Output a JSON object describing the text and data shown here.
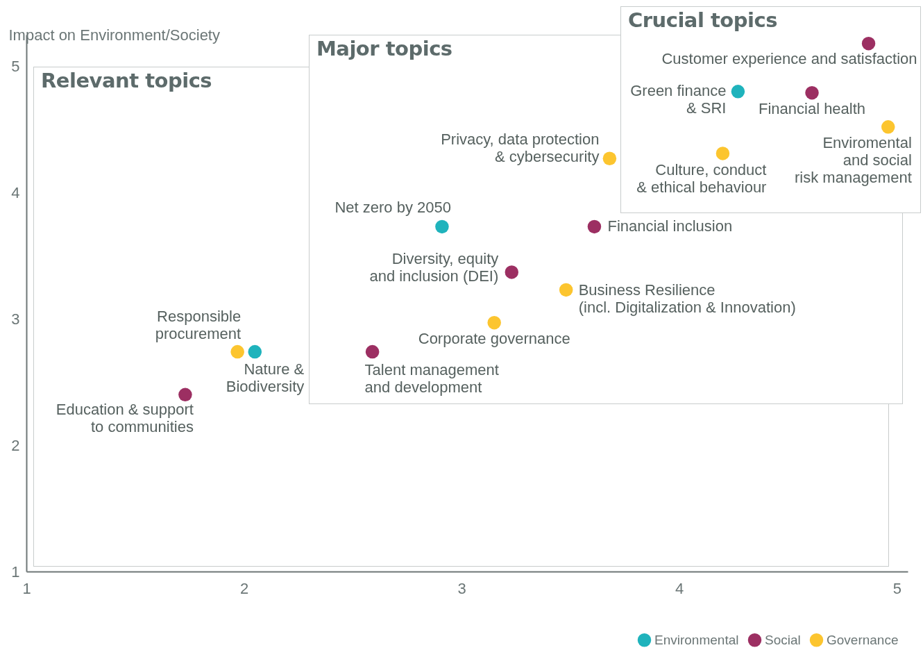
{
  "chart_data": {
    "type": "scatter",
    "ylabel": "Impact on Environment/Society",
    "xlim": [
      1,
      5.05
    ],
    "ylim": [
      1,
      5.25
    ],
    "xticks": [
      1,
      2,
      3,
      4,
      5
    ],
    "yticks": [
      1,
      2,
      3,
      4,
      5
    ],
    "grid": false,
    "legend": "bottom right",
    "marker": "circle",
    "series": [
      {
        "name": "Environmental",
        "color": "#1fb3bc",
        "x": [
          4.27,
          2.91,
          2.05
        ],
        "values": [
          4.8,
          3.73,
          2.74
        ]
      },
      {
        "name": "Social",
        "color": "#9c2f62",
        "x": [
          4.87,
          4.61,
          3.61,
          3.23,
          2.59,
          1.73
        ],
        "values": [
          5.18,
          4.79,
          3.73,
          3.37,
          2.74,
          2.4
        ]
      },
      {
        "name": "Governance",
        "color": "#fcc52f",
        "x": [
          4.96,
          4.2,
          3.68,
          3.48,
          3.15,
          1.97
        ],
        "values": [
          4.52,
          4.31,
          4.27,
          3.23,
          2.97,
          2.74
        ]
      }
    ],
    "annotations": [
      "Relevant topics",
      "Major topics",
      "Crucial topics",
      {
        "text": "Customer experience and satisfaction",
        "x": 4.87,
        "y": 5.18
      },
      {
        "text": "Green finance\n& SRI",
        "x": 4.27,
        "y": 4.8
      },
      {
        "text": "Financial health",
        "x": 4.61,
        "y": 4.79
      },
      {
        "text": "Enviromental\nand social\nrisk management",
        "x": 4.96,
        "y": 4.52
      },
      {
        "text": "Culture, conduct\n& ethical behaviour",
        "x": 4.2,
        "y": 4.31
      },
      {
        "text": "Privacy, data protection\n& cybersecurity",
        "x": 3.68,
        "y": 4.27
      },
      {
        "text": "Net zero by 2050",
        "x": 2.91,
        "y": 3.73
      },
      {
        "text": "Financial inclusion",
        "x": 3.61,
        "y": 3.73
      },
      {
        "text": "Diversity, equity\nand inclusion (DEI)",
        "x": 3.23,
        "y": 3.37
      },
      {
        "text": "Business Resilience\n(incl. Digitalization & Innovation)",
        "x": 3.48,
        "y": 3.23
      },
      {
        "text": "Corporate governance",
        "x": 3.15,
        "y": 2.97
      },
      {
        "text": "Talent management\nand development",
        "x": 2.59,
        "y": 2.74
      },
      {
        "text": "Responsible\nprocurement",
        "x": 1.97,
        "y": 2.74
      },
      {
        "text": "Nature &\nBiodiversity",
        "x": 2.05,
        "y": 2.74
      },
      {
        "text": "Education & support\nto communities",
        "x": 1.73,
        "y": 2.4
      }
    ]
  }
}
